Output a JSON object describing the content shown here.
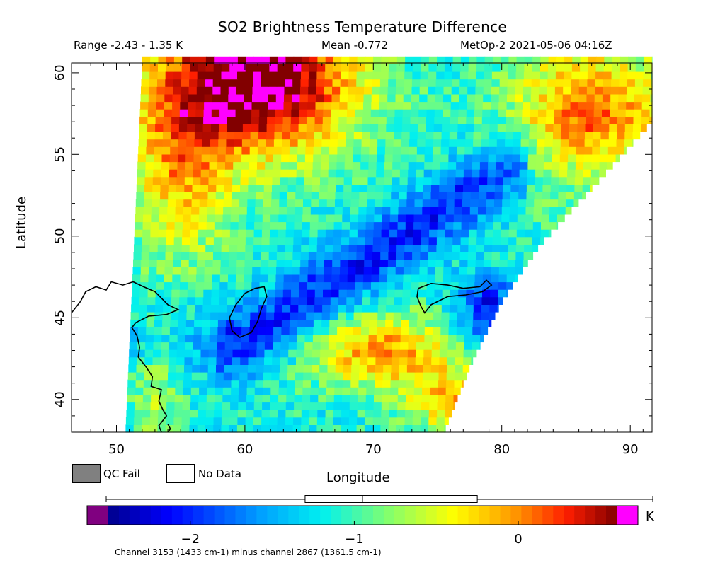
{
  "title": "SO2 Brightness Temperature Difference",
  "header": {
    "range_text": "Range -2.43 - 1.35 K",
    "mean_text": "Mean -0.772",
    "satellite_text": "MetOp-2 2021-05-06 04:16Z"
  },
  "legend": {
    "qc_fail_label": "QC Fail",
    "no_data_label": "No Data",
    "qc_fail_color": "#808080",
    "no_data_color": "#ffffff"
  },
  "colorbar": {
    "unit": "K",
    "tick_labels": [
      "-2",
      "-1",
      "0"
    ],
    "tick_values": [
      -2,
      -1,
      0
    ],
    "vmin": -2.5,
    "vmax": 0.6,
    "under_color": "#800080",
    "over_color": "#ff00ff",
    "boxplot": {
      "min": -2.43,
      "q1": -1.3,
      "median": -0.95,
      "q3": -0.25,
      "max": 1.35
    }
  },
  "footnote": "Channel 3153 (1433 cm-1) minus channel 2867 (1361.5 cm-1)",
  "chart_data": {
    "type": "heatmap",
    "title": "SO2 Brightness Temperature Difference",
    "xlabel": "Longitude",
    "ylabel": "Latitude",
    "xlim": [
      46.5,
      91.7
    ],
    "ylim": [
      38,
      60.6
    ],
    "x_ticks": [
      50,
      60,
      70,
      80,
      90
    ],
    "y_ticks": [
      40,
      45,
      50,
      55,
      60
    ],
    "value_unit": "K",
    "value_range": [
      -2.43,
      1.35
    ],
    "mean": -0.772,
    "colormap": "rainbow (dark blue to dark red)",
    "swath": {
      "left_edge": [
        [
          52.0,
          60.6
        ],
        [
          50.7,
          38.0
        ]
      ],
      "right_edge": [
        [
          91.7,
          57.0
        ],
        [
          86.5,
          52.5
        ],
        [
          83.0,
          49.5
        ],
        [
          80.0,
          46.0
        ],
        [
          77.5,
          42.0
        ],
        [
          75.5,
          38.0
        ]
      ]
    },
    "features": [
      {
        "region": "north-central (55-60.6N, 54-68E)",
        "value_approx": 0.8
      },
      {
        "region": "diagonal low band from 44N 62E to 54N 80E",
        "value_approx": -2.0
      },
      {
        "region": "east-central (44-47N, 78-80E)",
        "value_approx": -2.1
      },
      {
        "region": "south-central patch (41-45N, 66-75E)",
        "value_approx": -0.1
      },
      {
        "region": "north-east (54-60N, 84-91E)",
        "value_approx": 0.3
      }
    ],
    "grid": false
  }
}
